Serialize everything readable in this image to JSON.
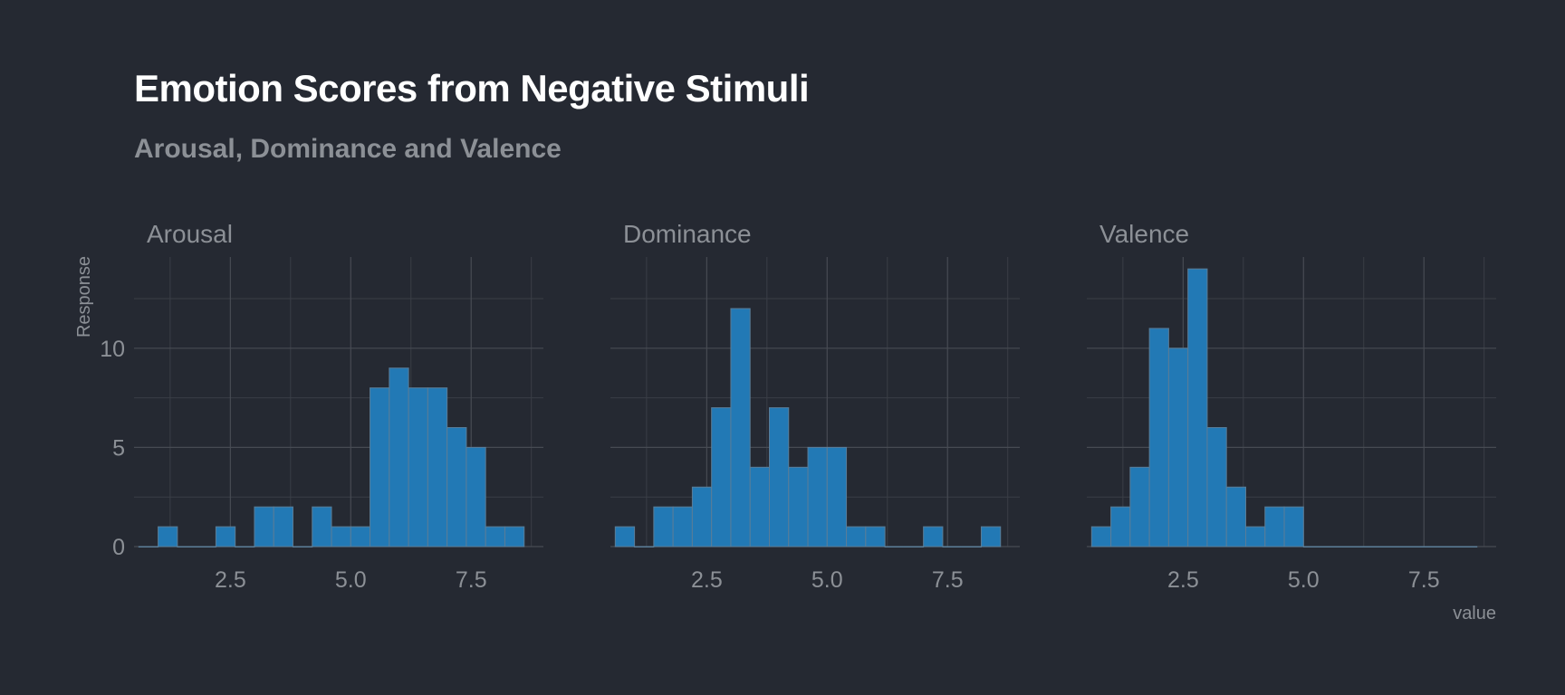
{
  "chart_data": {
    "type": "bar",
    "title": "Emotion Scores from Negative Stimuli",
    "subtitle": "Arousal, Dominance and Valence",
    "xlabel": "value",
    "ylabel": "Response",
    "grid": true,
    "xlim": [
      0.5,
      9.0
    ],
    "ylim": [
      0,
      14.6
    ],
    "x_ticks": [
      2.5,
      5.0,
      7.5
    ],
    "x_tick_labels": [
      "2.5",
      "5.0",
      "7.5"
    ],
    "y_ticks": [
      0,
      5,
      10
    ],
    "y_tick_labels": [
      "0",
      "5",
      "10"
    ],
    "bin_start": 0.6,
    "bin_width": 0.4,
    "colors": {
      "bar_fill": "#2279b5",
      "bar_stroke": "#5a7d98",
      "background": "#252932"
    },
    "facets": [
      {
        "name": "Arousal",
        "values": [
          0,
          1,
          0,
          0,
          1,
          0,
          2,
          2,
          0,
          2,
          1,
          1,
          8,
          9,
          8,
          8,
          6,
          5,
          1,
          1
        ]
      },
      {
        "name": "Dominance",
        "values": [
          1,
          0,
          2,
          2,
          3,
          7,
          12,
          4,
          7,
          4,
          5,
          5,
          1,
          1,
          0,
          0,
          1,
          0,
          0,
          1
        ]
      },
      {
        "name": "Valence",
        "values": [
          1,
          2,
          4,
          11,
          10,
          14,
          6,
          3,
          1,
          2,
          2,
          0,
          0,
          0,
          0,
          0,
          0,
          0,
          0,
          0
        ]
      }
    ]
  }
}
